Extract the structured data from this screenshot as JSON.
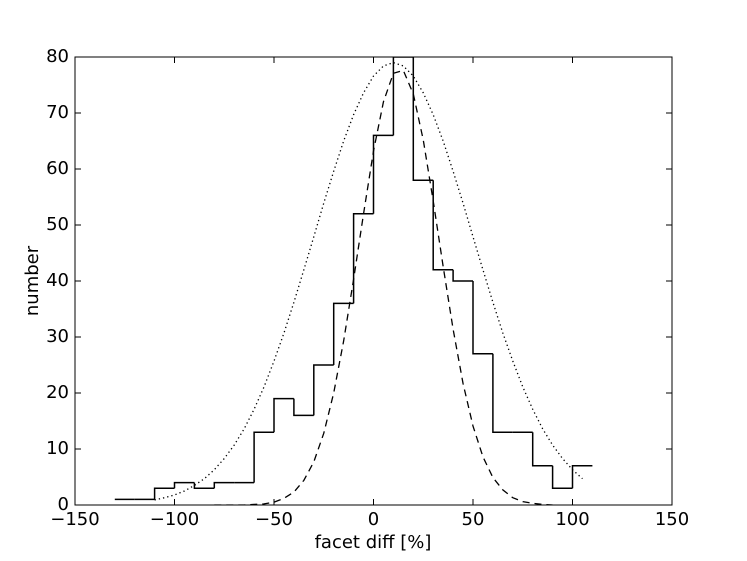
{
  "chart_data": {
    "type": "histogram",
    "xlabel": "facet diff [%]",
    "ylabel": "number",
    "bins": [
      -130,
      -120,
      -110,
      -100,
      -90,
      -80,
      -70,
      -60,
      -50,
      -40,
      -30,
      -20,
      -10,
      0,
      10,
      20,
      30,
      40,
      50,
      60,
      70,
      80,
      90,
      100,
      110
    ],
    "values": [
      1,
      1,
      3,
      4,
      3,
      4,
      4,
      13,
      19,
      16,
      25,
      36,
      52,
      66,
      80,
      58,
      42,
      40,
      27,
      13,
      13,
      7,
      3,
      7
    ],
    "color": "#000000",
    "overlays": {
      "type": "line",
      "x": [
        -110,
        -105,
        -100,
        -95,
        -90,
        -85,
        -80,
        -75,
        -70,
        -65,
        -60,
        -55,
        -50,
        -45,
        -40,
        -35,
        -30,
        -25,
        -20,
        -15,
        -10,
        -5,
        0,
        5,
        10,
        15,
        20,
        25,
        30,
        35,
        40,
        45,
        50,
        55,
        60,
        65,
        70,
        75,
        80,
        85,
        90,
        95,
        100,
        105
      ],
      "series": [
        {
          "style": "dashed",
          "color": "#000000",
          "values": [
            null,
            null,
            null,
            null,
            null,
            null,
            0.0,
            0.0,
            0.0,
            0.0,
            0.1,
            0.2,
            0.5,
            1.2,
            2.3,
            4.4,
            7.7,
            12.8,
            20.0,
            29.3,
            40.3,
            52.0,
            63.2,
            72.0,
            77.1,
            77.6,
            73.4,
            65.2,
            54.3,
            42.6,
            31.4,
            21.7,
            14.1,
            8.6,
            4.9,
            2.7,
            1.3,
            0.6,
            0.3,
            0.1,
            0.0,
            null,
            null,
            null
          ]
        },
        {
          "style": "dotted",
          "color": "#000000",
          "values": [
            0.9,
            1.3,
            1.8,
            2.5,
            3.5,
            4.7,
            6.3,
            8.3,
            10.7,
            13.6,
            17.1,
            21.1,
            25.7,
            30.7,
            36.2,
            42.0,
            47.9,
            53.9,
            59.6,
            65.0,
            69.7,
            73.6,
            76.6,
            78.4,
            79,
            78.4,
            76.6,
            73.6,
            69.7,
            65.0,
            59.6,
            53.9,
            47.9,
            42.0,
            36.2,
            30.7,
            25.7,
            21.1,
            17.1,
            13.6,
            10.7,
            8.3,
            6.3,
            4.7
          ]
        }
      ]
    },
    "xlim": [
      -150,
      150
    ],
    "xticks": [
      {
        "value": -150,
        "label": "−150"
      },
      {
        "value": -100,
        "label": "−100"
      },
      {
        "value": -50,
        "label": "−50"
      },
      0,
      50,
      100,
      150
    ],
    "ylim": [
      0,
      80
    ],
    "yticks": [
      0,
      10,
      20,
      30,
      40,
      50,
      60,
      70,
      80
    ]
  }
}
